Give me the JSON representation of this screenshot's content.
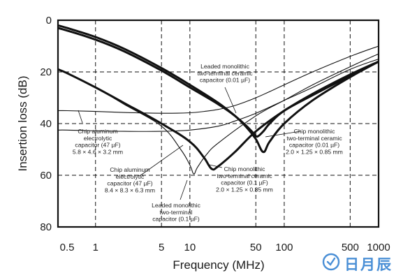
{
  "chart_data": {
    "type": "line",
    "xlabel": "Frequency (MHz)",
    "ylabel": "Insertion loss (dB)",
    "x_scale": "log",
    "xlim": [
      0.4,
      1000
    ],
    "ylim": [
      0,
      80
    ],
    "y_inverted": true,
    "grid": true,
    "x_ticks": [
      0.5,
      1,
      5,
      10,
      50,
      100,
      500,
      1000
    ],
    "x_tick_labels": [
      "0.5",
      "1",
      "5",
      "10",
      "50",
      "100",
      "500",
      "1000"
    ],
    "y_ticks": [
      0,
      20,
      40,
      60,
      80
    ],
    "y_tick_labels": [
      "0",
      "20",
      "40",
      "60",
      "80"
    ],
    "series": [
      {
        "name": "Chip aluminum electrolytic capacitor (47 µF) 5.8 × 4.6 × 3.2 mm",
        "weight": "thin",
        "x": [
          0.4,
          0.5,
          1,
          2,
          5,
          10,
          15,
          20,
          30,
          50,
          100,
          200,
          500,
          1000
        ],
        "y": [
          35,
          35,
          35.3,
          35.7,
          36,
          35.8,
          35.2,
          34.5,
          33,
          30,
          25,
          20,
          14,
          10
        ]
      },
      {
        "name": "Chip aluminum electrolytic capacitor (47 µF) 8.4 × 8.3 × 6.3 mm",
        "weight": "thin",
        "x": [
          0.4,
          0.5,
          1,
          2,
          5,
          10,
          20,
          30,
          50,
          100,
          200,
          500,
          1000
        ],
        "y": [
          42.5,
          42.5,
          42.8,
          43,
          43,
          42.5,
          41,
          39,
          36,
          31,
          26,
          19,
          15
        ]
      },
      {
        "name": "Leaded monolithic two-terminal ceramic capacitor (0.01 µF)",
        "weight": "thick",
        "x": [
          0.4,
          0.5,
          1,
          2,
          5,
          10,
          20,
          30,
          40,
          48,
          52,
          60,
          70,
          100,
          200,
          500,
          1000
        ],
        "y": [
          2,
          3,
          6.5,
          11,
          18.5,
          25,
          32,
          37,
          41,
          44,
          45,
          43,
          40,
          35,
          29,
          21.5,
          16
        ]
      },
      {
        "name": "Chip monolithic two-terminal ceramic capacitor (0.01 µF) 2.0 × 1.25 × 0.85 mm",
        "weight": "thick",
        "x": [
          0.4,
          0.5,
          1,
          2,
          5,
          10,
          20,
          30,
          40,
          50,
          60,
          70,
          100,
          200,
          500,
          1000
        ],
        "y": [
          3,
          4,
          7.5,
          12,
          19.5,
          26,
          32.5,
          37,
          41.5,
          46,
          51,
          47,
          40,
          31,
          22,
          16
        ]
      },
      {
        "name": "Leaded monolithic two-terminal capacitor (0.1 µF)",
        "weight": "thick",
        "x": [
          0.4,
          0.5,
          1,
          2,
          5,
          10,
          14,
          17,
          20,
          30,
          50,
          100,
          200,
          500,
          1000
        ],
        "y": [
          19,
          20.5,
          26,
          32,
          40,
          47,
          53,
          57.5,
          56.5,
          51,
          43,
          35,
          28.5,
          21,
          16
        ]
      },
      {
        "name": "Chip monolithic two-terminal ceramic capacitor (0.1 µF) 2.0 × 1.25 × 0.85 mm",
        "weight": "thin",
        "x": [
          0.4,
          0.5,
          1,
          2,
          5,
          8,
          10,
          11,
          12,
          15,
          20,
          50,
          100,
          200,
          500,
          1000
        ],
        "y": [
          19,
          20.5,
          26,
          32.5,
          41,
          50,
          56,
          59.5,
          57,
          52,
          47.5,
          37,
          31,
          25,
          18,
          13
        ]
      }
    ],
    "annotations": [
      {
        "lines": [
          "Leaded monolithic",
          "two-terminal ceramic",
          "capacitor (0.01 µF)"
        ]
      },
      {
        "lines": [
          "Chip aluminum",
          "electrolytic",
          "capacitor (47 µF)",
          "5.8 × 4.6 × 3.2 mm"
        ]
      },
      {
        "lines": [
          "Chip aluminum",
          "electrolytic",
          "capacitor (47 µF)",
          "8.4 × 8.3 × 6.3 mm"
        ]
      },
      {
        "lines": [
          "Chip monolithic",
          "two-terminal ceramic",
          "capacitor (0.01 µF)",
          "2.0 × 1.25 × 0.85 mm"
        ]
      },
      {
        "lines": [
          "Chip monolithic",
          "two-terminal ceramic",
          "capacitor (0.1 µF)",
          "2.0 × 1.25 × 0.85 mm"
        ]
      },
      {
        "lines": [
          "Leaded monolithic",
          "two-terminal",
          "capacitor (0.1 µF)"
        ]
      }
    ]
  },
  "watermark": {
    "text": "日月辰",
    "icon": "circular-logo-icon",
    "color": "#4a8fd6"
  }
}
